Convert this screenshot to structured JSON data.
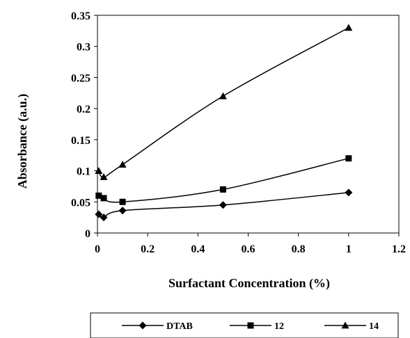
{
  "chart_data": {
    "type": "line",
    "title": "",
    "xlabel": "Surfactant Concentration (%)",
    "ylabel": "Absorbance (a.u.)",
    "xlim": [
      0,
      1.2
    ],
    "ylim": [
      0,
      0.35
    ],
    "x_ticks": [
      "0",
      "0.2",
      "0.4",
      "0.6",
      "0.8",
      "1",
      "1.2"
    ],
    "y_ticks": [
      "0",
      "0.05",
      "0.1",
      "0.15",
      "0.2",
      "0.25",
      "0.3",
      "0.35"
    ],
    "grid": false,
    "legend_position": "bottom",
    "line_color": "#000000",
    "series": [
      {
        "name": "DTAB",
        "marker": "diamond",
        "x": [
          0.005,
          0.025,
          0.1,
          0.5,
          1.0
        ],
        "y": [
          0.03,
          0.025,
          0.036,
          0.045,
          0.065
        ]
      },
      {
        "name": "12",
        "marker": "square",
        "x": [
          0.005,
          0.025,
          0.1,
          0.5,
          1.0
        ],
        "y": [
          0.06,
          0.056,
          0.05,
          0.07,
          0.12
        ]
      },
      {
        "name": "14",
        "marker": "triangle",
        "x": [
          0.005,
          0.025,
          0.1,
          0.5,
          1.0
        ],
        "y": [
          0.1,
          0.09,
          0.11,
          0.22,
          0.33
        ]
      }
    ]
  }
}
